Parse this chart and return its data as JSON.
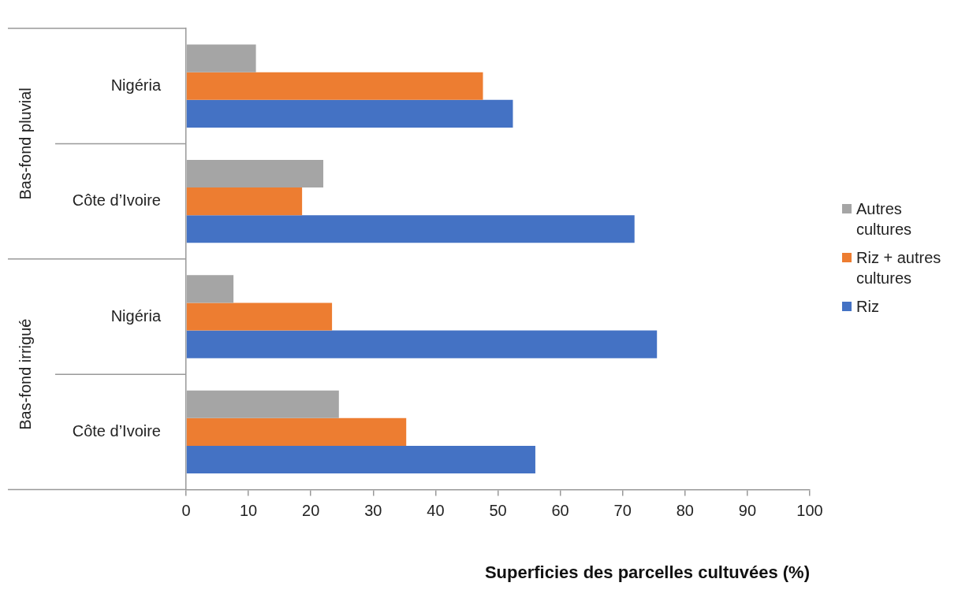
{
  "chart_data": {
    "type": "bar",
    "orientation": "horizontal",
    "xlabel": "Superficies des parcelles cultuvées (%)",
    "categories": [
      "Nigéria",
      "Côte d’Ivoire",
      "Nigéria",
      "Côte d’Ivoire"
    ],
    "series": [
      {
        "name": "Autres cultures",
        "color": "#a5a5a5",
        "values": [
          11.2,
          22.0,
          7.6,
          24.5
        ]
      },
      {
        "name": "Riz + autres cultures",
        "color": "#ed7d31",
        "values": [
          47.6,
          18.6,
          23.4,
          35.3
        ]
      },
      {
        "name": "Riz",
        "color": "#4472c4",
        "values": [
          52.4,
          71.9,
          75.5,
          56.0
        ]
      }
    ],
    "xlim": [
      0,
      100
    ],
    "xticks": [
      0,
      10,
      20,
      30,
      40,
      50,
      60,
      70,
      80,
      90,
      100
    ],
    "grid": false,
    "legend": "right",
    "annotations": [
      "Bas-fond pluvial",
      "Bas-fond irrigué"
    ]
  }
}
